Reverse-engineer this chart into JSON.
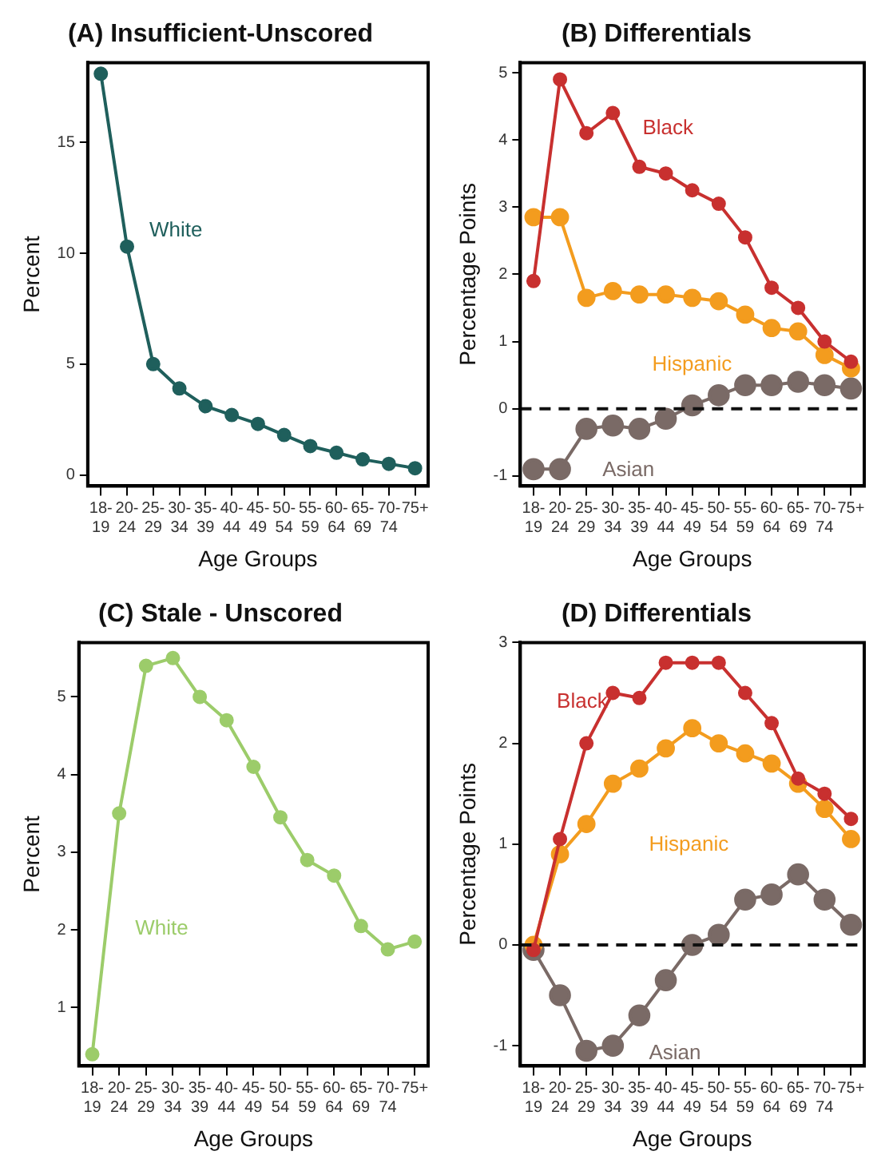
{
  "chart_data": [
    {
      "type": "line",
      "title": "(A) Insufficient-Unscored",
      "xlabel": "Age Groups",
      "ylabel": "Percent",
      "categories": [
        "18-19",
        "20-24",
        "25-29",
        "30-34",
        "35-39",
        "40-44",
        "45-49",
        "50-54",
        "55-59",
        "60-64",
        "65-69",
        "70-74",
        "75+"
      ],
      "series": [
        {
          "name": "White",
          "color": "#1f5f5c",
          "values": [
            18.1,
            10.3,
            5.0,
            3.9,
            3.1,
            2.7,
            2.3,
            1.8,
            1.3,
            1.0,
            0.7,
            0.5,
            0.3
          ]
        }
      ],
      "ylim": [
        -0.5,
        18.6
      ],
      "yticks": [
        0,
        5,
        10,
        15
      ],
      "grid": false,
      "legend": false,
      "marker": "circle",
      "line_style": "solid"
    },
    {
      "type": "line",
      "title": "(B) Differentials",
      "xlabel": "Age Groups",
      "ylabel": "Percentage Points",
      "categories": [
        "18-19",
        "20-24",
        "25-29",
        "30-34",
        "35-39",
        "40-44",
        "45-49",
        "50-54",
        "55-59",
        "60-64",
        "65-69",
        "70-74",
        "75+"
      ],
      "series": [
        {
          "name": "Black",
          "color": "#c8302f",
          "values": [
            1.9,
            4.9,
            4.1,
            4.4,
            3.6,
            3.5,
            3.25,
            3.05,
            2.55,
            1.8,
            1.5,
            1.0,
            0.7
          ]
        },
        {
          "name": "Hispanic",
          "color": "#f39c1e",
          "values": [
            2.85,
            2.85,
            1.65,
            1.75,
            1.7,
            1.7,
            1.65,
            1.6,
            1.4,
            1.2,
            1.15,
            0.8,
            0.6
          ]
        },
        {
          "name": "Asian",
          "color": "#7a6a66",
          "values": [
            -0.9,
            -0.9,
            -0.3,
            -0.25,
            -0.3,
            -0.15,
            0.05,
            0.2,
            0.35,
            0.35,
            0.4,
            0.35,
            0.3
          ]
        }
      ],
      "ylim": [
        -1.15,
        5.15
      ],
      "yticks": [
        -1,
        0,
        1,
        2,
        3,
        4,
        5
      ],
      "grid": false,
      "legend": false,
      "marker": "circle",
      "line_style": "solid",
      "ref_lines": [
        {
          "axis": "y",
          "value": 0,
          "color": "#111111",
          "line_style": "dashed"
        }
      ]
    },
    {
      "type": "line",
      "title": "(C) Stale - Unscored",
      "xlabel": "Age Groups",
      "ylabel": "Percent",
      "categories": [
        "18-19",
        "20-24",
        "25-29",
        "30-34",
        "35-39",
        "40-44",
        "45-49",
        "50-54",
        "55-59",
        "60-64",
        "65-69",
        "70-74",
        "75+"
      ],
      "series": [
        {
          "name": "White",
          "color": "#9ccc6a",
          "values": [
            0.4,
            3.5,
            5.4,
            5.5,
            5.0,
            4.7,
            4.1,
            3.45,
            2.9,
            2.7,
            2.05,
            1.75,
            1.85
          ]
        }
      ],
      "ylim": [
        0.25,
        5.7
      ],
      "yticks": [
        1,
        2,
        3,
        4,
        5
      ],
      "grid": false,
      "legend": false,
      "marker": "circle",
      "line_style": "solid"
    },
    {
      "type": "line",
      "title": "(D) Differentials",
      "xlabel": "Age Groups",
      "ylabel": "Percentage Points",
      "categories": [
        "18-19",
        "20-24",
        "25-29",
        "30-34",
        "35-39",
        "40-44",
        "45-49",
        "50-54",
        "55-59",
        "60-64",
        "65-69",
        "70-74",
        "75+"
      ],
      "series": [
        {
          "name": "Black",
          "color": "#c8302f",
          "values": [
            -0.05,
            1.05,
            2.0,
            2.5,
            2.45,
            2.8,
            2.8,
            2.8,
            2.5,
            2.2,
            1.65,
            1.5,
            1.25
          ]
        },
        {
          "name": "Hispanic",
          "color": "#f39c1e",
          "values": [
            0.0,
            0.9,
            1.2,
            1.6,
            1.75,
            1.95,
            2.15,
            2.0,
            1.9,
            1.8,
            1.6,
            1.35,
            1.05
          ]
        },
        {
          "name": "Asian",
          "color": "#7a6a66",
          "values": [
            -0.05,
            -0.5,
            -1.05,
            -1.0,
            -0.7,
            -0.35,
            0.0,
            0.1,
            0.45,
            0.5,
            0.7,
            0.45,
            0.2
          ]
        }
      ],
      "ylim": [
        -1.2,
        3.0
      ],
      "yticks": [
        -1,
        0,
        1,
        2,
        3
      ],
      "grid": false,
      "legend": false,
      "marker": "circle",
      "line_style": "solid",
      "ref_lines": [
        {
          "axis": "y",
          "value": 0,
          "color": "#111111",
          "line_style": "dashed"
        }
      ]
    }
  ]
}
